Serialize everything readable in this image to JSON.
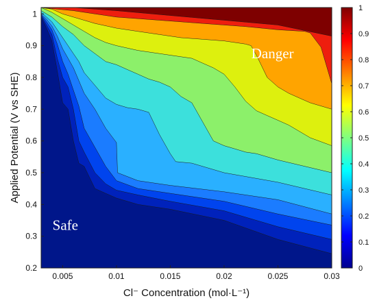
{
  "chart_data": {
    "type": "heatmap",
    "xlabel": "Cl⁻ Concentration  (mol·L⁻¹)",
    "ylabel": "Applied Potential (V vs SHE)",
    "xlim": [
      0.003,
      0.03
    ],
    "ylim": [
      0.2,
      1.02
    ],
    "xticks": [
      "0.005",
      "0.01",
      "0.015",
      "0.02",
      "0.025",
      "0.03"
    ],
    "yticks": [
      "0.2",
      "0.3",
      "0.4",
      "0.5",
      "0.6",
      "0.7",
      "0.8",
      "0.9",
      "1"
    ],
    "colorbar": {
      "range": [
        0,
        1
      ],
      "ticks": [
        "0",
        "0.1",
        "0.2",
        "0.3",
        "0.4",
        "0.5",
        "0.6",
        "0.7",
        "0.8",
        "0.9",
        "1"
      ],
      "colormap": "jet"
    },
    "annotations": [
      {
        "text": "Danger",
        "x": 0.0245,
        "y": 0.875
      },
      {
        "text": "Safe",
        "x": 0.00525,
        "y": 0.335
      }
    ],
    "levels": [
      {
        "level": 0.1,
        "color": "#0022bb",
        "boundary": [
          [
            0.003,
            0.99
          ],
          [
            0.0035,
            0.955
          ],
          [
            0.004,
            0.915
          ],
          [
            0.0045,
            0.82
          ],
          [
            0.005,
            0.72
          ],
          [
            0.0055,
            0.7
          ],
          [
            0.006,
            0.6
          ],
          [
            0.0065,
            0.53
          ],
          [
            0.007,
            0.52
          ],
          [
            0.008,
            0.45
          ],
          [
            0.009,
            0.435
          ],
          [
            0.01,
            0.42
          ],
          [
            0.012,
            0.4
          ],
          [
            0.015,
            0.385
          ],
          [
            0.02,
            0.35
          ],
          [
            0.025,
            0.29
          ],
          [
            0.03,
            0.245
          ]
        ]
      },
      {
        "level": 0.2,
        "color": "#0044ee",
        "boundary": [
          [
            0.003,
            0.995
          ],
          [
            0.0035,
            0.965
          ],
          [
            0.004,
            0.935
          ],
          [
            0.0045,
            0.86
          ],
          [
            0.005,
            0.8
          ],
          [
            0.0055,
            0.77
          ],
          [
            0.006,
            0.7
          ],
          [
            0.0065,
            0.6
          ],
          [
            0.007,
            0.565
          ],
          [
            0.008,
            0.5
          ],
          [
            0.009,
            0.465
          ],
          [
            0.01,
            0.445
          ],
          [
            0.012,
            0.43
          ],
          [
            0.015,
            0.41
          ],
          [
            0.02,
            0.38
          ],
          [
            0.025,
            0.33
          ],
          [
            0.03,
            0.29
          ]
        ]
      },
      {
        "level": 0.3,
        "color": "#1b7cff",
        "boundary": [
          [
            0.003,
            0.998
          ],
          [
            0.0035,
            0.975
          ],
          [
            0.004,
            0.95
          ],
          [
            0.0045,
            0.905
          ],
          [
            0.005,
            0.85
          ],
          [
            0.0055,
            0.81
          ],
          [
            0.006,
            0.76
          ],
          [
            0.0065,
            0.71
          ],
          [
            0.007,
            0.64
          ],
          [
            0.008,
            0.58
          ],
          [
            0.009,
            0.52
          ],
          [
            0.01,
            0.475
          ],
          [
            0.012,
            0.45
          ],
          [
            0.015,
            0.435
          ],
          [
            0.02,
            0.41
          ],
          [
            0.025,
            0.37
          ],
          [
            0.03,
            0.335
          ]
        ]
      },
      {
        "level": 0.4,
        "color": "#2ab0ff",
        "boundary": [
          [
            0.003,
            1.0
          ],
          [
            0.0035,
            0.983
          ],
          [
            0.004,
            0.962
          ],
          [
            0.0045,
            0.93
          ],
          [
            0.005,
            0.89
          ],
          [
            0.0055,
            0.86
          ],
          [
            0.006,
            0.83
          ],
          [
            0.0065,
            0.79
          ],
          [
            0.007,
            0.75
          ],
          [
            0.008,
            0.7
          ],
          [
            0.009,
            0.64
          ],
          [
            0.01,
            0.595
          ],
          [
            0.0101,
            0.5
          ],
          [
            0.012,
            0.475
          ],
          [
            0.015,
            0.46
          ],
          [
            0.02,
            0.44
          ],
          [
            0.025,
            0.415
          ],
          [
            0.03,
            0.37
          ]
        ]
      },
      {
        "level": 0.5,
        "color": "#3ce0dc",
        "boundary": [
          [
            0.003,
            1.005
          ],
          [
            0.0035,
            0.99
          ],
          [
            0.004,
            0.975
          ],
          [
            0.0045,
            0.95
          ],
          [
            0.005,
            0.925
          ],
          [
            0.0055,
            0.9
          ],
          [
            0.006,
            0.875
          ],
          [
            0.0065,
            0.85
          ],
          [
            0.007,
            0.815
          ],
          [
            0.008,
            0.775
          ],
          [
            0.009,
            0.735
          ],
          [
            0.01,
            0.715
          ],
          [
            0.011,
            0.705
          ],
          [
            0.012,
            0.7
          ],
          [
            0.013,
            0.69
          ],
          [
            0.014,
            0.62
          ],
          [
            0.015,
            0.56
          ],
          [
            0.0155,
            0.535
          ],
          [
            0.017,
            0.53
          ],
          [
            0.02,
            0.5
          ],
          [
            0.025,
            0.47
          ],
          [
            0.03,
            0.43
          ]
        ]
      },
      {
        "level": 0.6,
        "color": "#8cf06a",
        "boundary": [
          [
            0.003,
            1.01
          ],
          [
            0.0035,
            1.0
          ],
          [
            0.004,
            0.99
          ],
          [
            0.005,
            0.96
          ],
          [
            0.006,
            0.935
          ],
          [
            0.007,
            0.9
          ],
          [
            0.008,
            0.875
          ],
          [
            0.009,
            0.85
          ],
          [
            0.01,
            0.84
          ],
          [
            0.011,
            0.825
          ],
          [
            0.012,
            0.81
          ],
          [
            0.013,
            0.795
          ],
          [
            0.014,
            0.785
          ],
          [
            0.015,
            0.77
          ],
          [
            0.016,
            0.74
          ],
          [
            0.017,
            0.72
          ],
          [
            0.018,
            0.66
          ],
          [
            0.019,
            0.6
          ],
          [
            0.02,
            0.585
          ],
          [
            0.021,
            0.575
          ],
          [
            0.022,
            0.565
          ],
          [
            0.023,
            0.56
          ],
          [
            0.025,
            0.54
          ],
          [
            0.03,
            0.5
          ]
        ]
      },
      {
        "level": 0.7,
        "color": "#ddf00e",
        "boundary": [
          [
            0.003,
            1.02
          ],
          [
            0.004,
            1.005
          ],
          [
            0.005,
            0.985
          ],
          [
            0.006,
            0.965
          ],
          [
            0.007,
            0.945
          ],
          [
            0.008,
            0.925
          ],
          [
            0.009,
            0.91
          ],
          [
            0.01,
            0.9
          ],
          [
            0.012,
            0.885
          ],
          [
            0.014,
            0.875
          ],
          [
            0.016,
            0.865
          ],
          [
            0.017,
            0.86
          ],
          [
            0.018,
            0.845
          ],
          [
            0.019,
            0.83
          ],
          [
            0.02,
            0.81
          ],
          [
            0.021,
            0.77
          ],
          [
            0.022,
            0.725
          ],
          [
            0.023,
            0.695
          ],
          [
            0.024,
            0.68
          ],
          [
            0.025,
            0.665
          ],
          [
            0.026,
            0.65
          ],
          [
            0.028,
            0.61
          ],
          [
            0.03,
            0.585
          ]
        ]
      },
      {
        "level": 0.8,
        "color": "#ffa400",
        "boundary": [
          [
            0.003,
            1.02
          ],
          [
            0.004,
            1.015
          ],
          [
            0.005,
            1.0
          ],
          [
            0.006,
            0.99
          ],
          [
            0.008,
            0.97
          ],
          [
            0.01,
            0.955
          ],
          [
            0.012,
            0.945
          ],
          [
            0.014,
            0.935
          ],
          [
            0.016,
            0.925
          ],
          [
            0.018,
            0.92
          ],
          [
            0.02,
            0.915
          ],
          [
            0.022,
            0.905
          ],
          [
            0.0225,
            0.9
          ],
          [
            0.023,
            0.87
          ],
          [
            0.024,
            0.8
          ],
          [
            0.025,
            0.77
          ],
          [
            0.026,
            0.75
          ],
          [
            0.027,
            0.735
          ],
          [
            0.028,
            0.72
          ],
          [
            0.03,
            0.7
          ]
        ]
      },
      {
        "level": 0.9,
        "color": "#ee1e0e",
        "boundary": [
          [
            0.003,
            1.02
          ],
          [
            0.006,
            1.01
          ],
          [
            0.008,
            1.0
          ],
          [
            0.01,
            0.99
          ],
          [
            0.014,
            0.98
          ],
          [
            0.018,
            0.97
          ],
          [
            0.022,
            0.96
          ],
          [
            0.025,
            0.95
          ],
          [
            0.0275,
            0.945
          ],
          [
            0.028,
            0.94
          ],
          [
            0.029,
            0.895
          ],
          [
            0.03,
            0.78
          ]
        ]
      },
      {
        "level": 1.0,
        "color": "#7e0000",
        "boundary": [
          [
            0.003,
            1.02
          ],
          [
            0.005,
            1.02
          ],
          [
            0.006,
            1.02
          ],
          [
            0.008,
            1.015
          ],
          [
            0.01,
            1.01
          ],
          [
            0.015,
            0.995
          ],
          [
            0.02,
            0.98
          ],
          [
            0.025,
            0.965
          ],
          [
            0.03,
            0.93
          ]
        ]
      }
    ],
    "background_color": "#00168a"
  }
}
